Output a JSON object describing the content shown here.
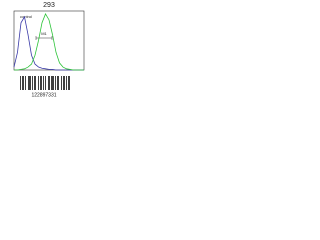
{
  "chart_data": {
    "type": "line",
    "title": "293",
    "annotations": [
      "control",
      "M1"
    ],
    "footer": "122897331",
    "x": [
      0,
      1,
      2,
      3,
      4,
      5,
      6,
      7,
      8,
      9,
      10,
      11,
      12,
      13,
      14,
      15,
      16,
      17,
      18,
      19,
      20
    ],
    "xlim": [
      0,
      20
    ],
    "ylim": [
      0,
      100
    ],
    "series": [
      {
        "color": "#3a3aa8",
        "values": [
          5,
          30,
          80,
          90,
          60,
          25,
          10,
          5,
          3,
          2,
          1,
          1,
          0,
          0,
          0,
          0,
          0,
          0,
          0,
          0,
          0
        ]
      },
      {
        "color": "#2ec43a",
        "values": [
          0,
          0,
          1,
          2,
          5,
          10,
          25,
          50,
          80,
          95,
          85,
          60,
          30,
          12,
          5,
          2,
          1,
          0,
          0,
          0,
          0
        ]
      }
    ]
  }
}
